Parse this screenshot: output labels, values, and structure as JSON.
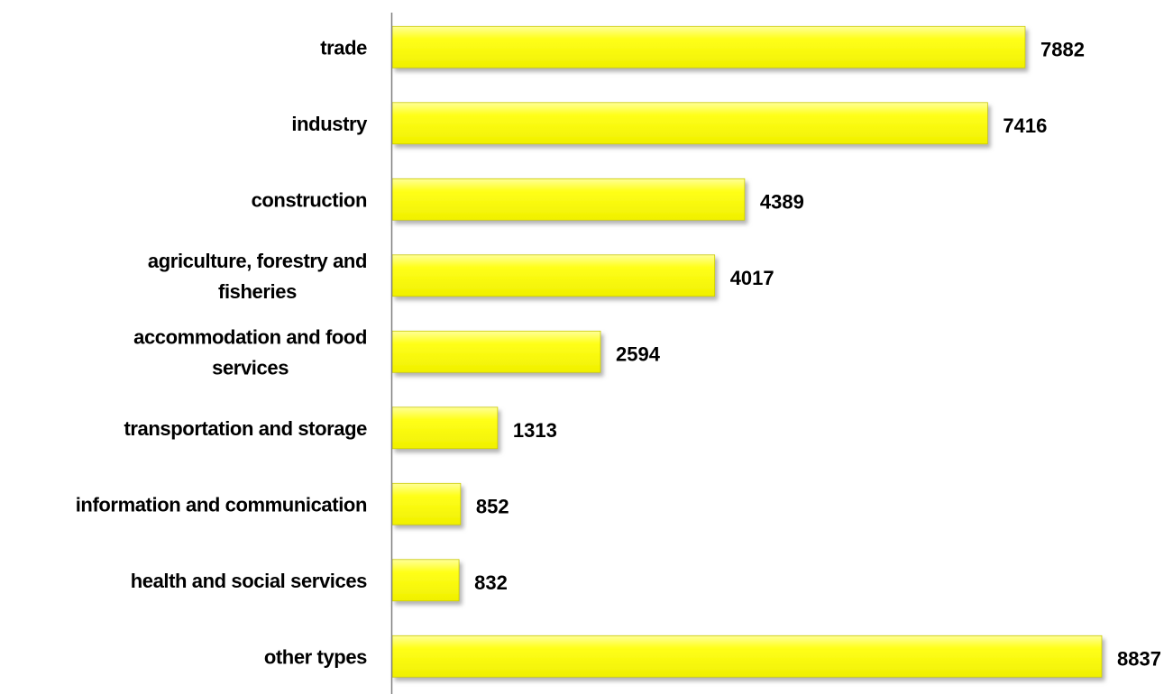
{
  "chart_data": {
    "type": "bar",
    "orientation": "horizontal",
    "categories": [
      "trade",
      "industry",
      "construction",
      "agriculture, forestry and fisheries",
      "accommodation and food services",
      "transportation and storage",
      "information and communication",
      "health and social services",
      "other types"
    ],
    "category_lines": [
      [
        "trade"
      ],
      [
        "industry"
      ],
      [
        "construction"
      ],
      [
        "agriculture, forestry and",
        "fisheries"
      ],
      [
        "accommodation and food",
        "services"
      ],
      [
        "transportation and storage"
      ],
      [
        "information and communication"
      ],
      [
        "health and social services"
      ],
      [
        "other types"
      ]
    ],
    "values": [
      7882,
      7416,
      4389,
      4017,
      2594,
      1313,
      852,
      832,
      8837
    ],
    "value_labels": [
      "7882",
      "7416",
      "4389",
      "4017",
      "2594",
      "1313",
      "852",
      "832",
      "8837"
    ],
    "title": "",
    "xlabel": "",
    "ylabel": "",
    "xlim": [
      0,
      8837
    ],
    "grid": false,
    "legend": "none",
    "colors": {
      "bar": "#ffff1a",
      "bar_highlight": "#ffff99",
      "bar_edge": "#c8c800",
      "shadow": "#9a9a9a",
      "axis": "#808080",
      "text": "#000000"
    }
  }
}
